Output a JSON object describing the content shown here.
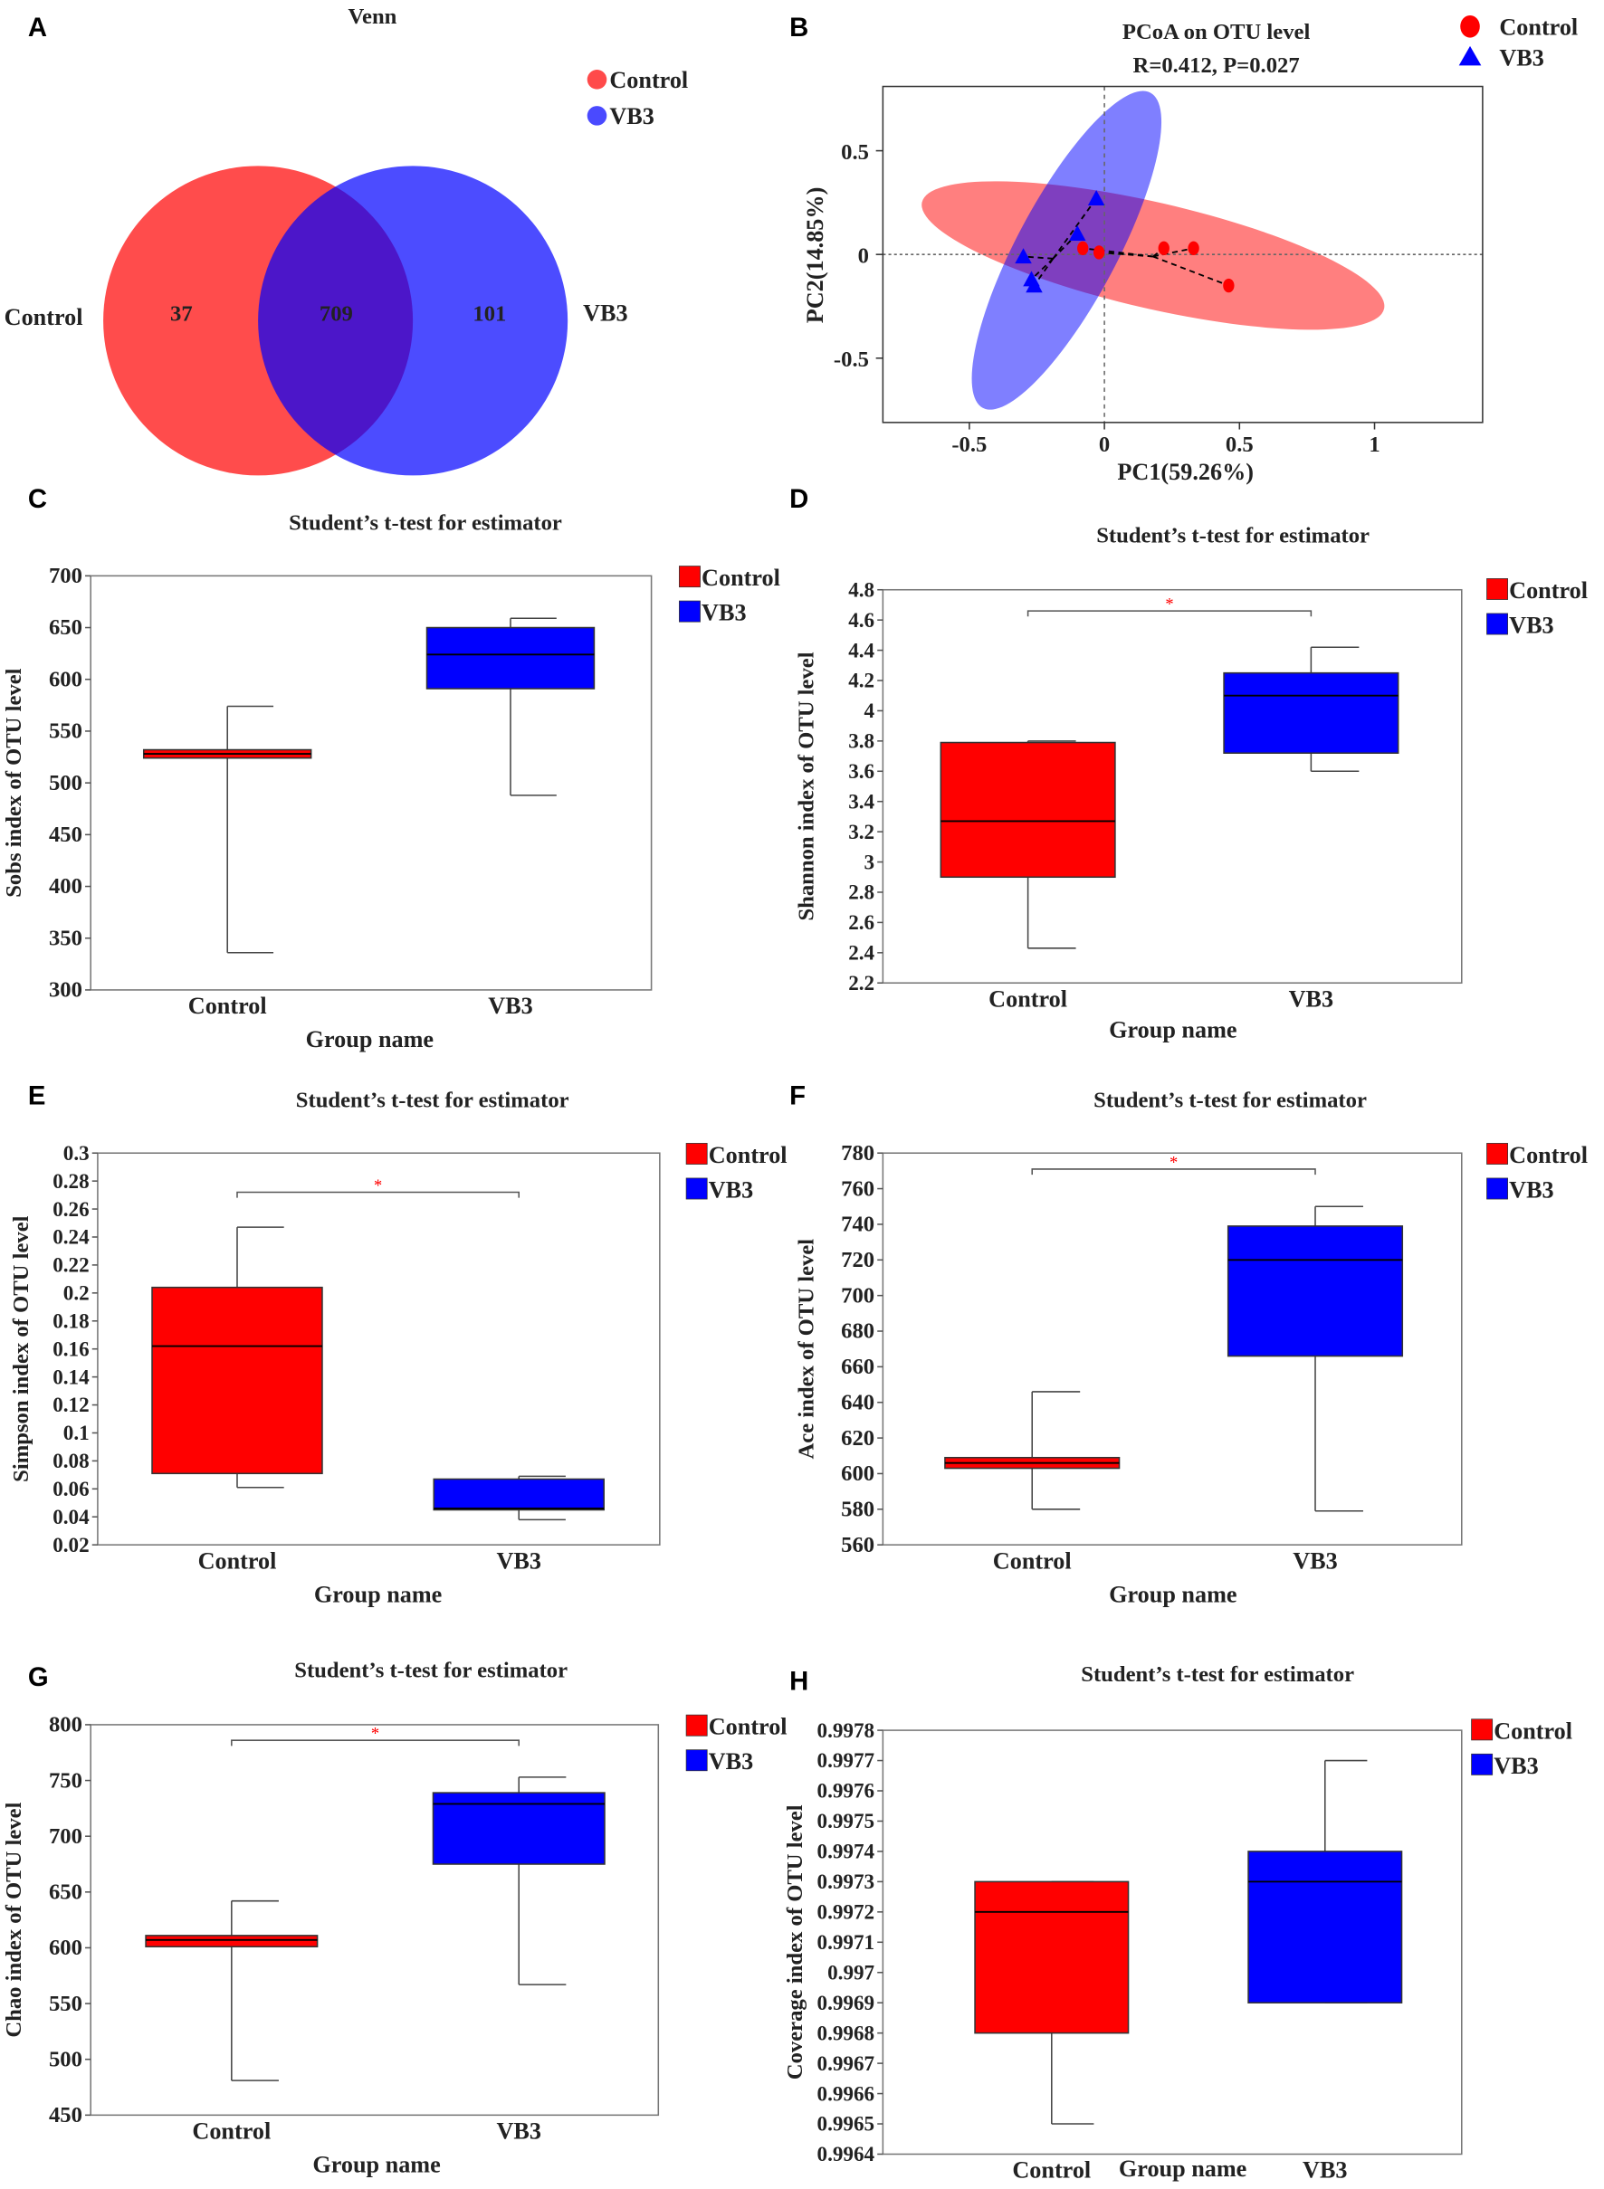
{
  "legend": {
    "control": "Control",
    "vb3": "VB3"
  },
  "colors": {
    "control": "#ff0000",
    "vb3": "#0000ff",
    "venn_control": "#ff4a4a",
    "venn_vb3": "#4a4aff",
    "sig": "#ff0000"
  },
  "venn": {
    "letter": "A",
    "title": "Venn",
    "set_labels": [
      "Control",
      "VB3"
    ],
    "only_control": "37",
    "shared": "709",
    "only_vb3": "101"
  },
  "chart_data": [
    {
      "panel": "B",
      "type": "scatter",
      "title": "PCoA on OTU level",
      "subtitle": "R=0.412, P=0.027",
      "xlabel": "PC1(59.26%)",
      "ylabel": "PC2(14.85%)",
      "xlim": [
        -0.82,
        1.4
      ],
      "ylim": [
        -0.81,
        0.81
      ],
      "xticks": [
        "-0.5",
        "0",
        "0.5",
        "1"
      ],
      "xtick_values": [
        -0.5,
        0,
        0.5,
        1
      ],
      "yticks": [
        "0.5",
        "0",
        "-0.5"
      ],
      "ytick_values": [
        0.5,
        0,
        -0.5
      ],
      "legend_position": "top-right",
      "series": [
        {
          "name": "Control",
          "marker": "circle",
          "centroid": [
            0.18,
            -0.01
          ],
          "points": [
            [
              -0.08,
              0.03
            ],
            [
              -0.02,
              0.01
            ],
            [
              0.22,
              0.03
            ],
            [
              0.33,
              0.03
            ],
            [
              0.46,
              -0.15
            ]
          ]
        },
        {
          "name": "VB3",
          "marker": "triangle",
          "centroid": [
            -0.19,
            -0.02
          ],
          "points": [
            [
              -0.3,
              -0.01
            ],
            [
              -0.27,
              -0.12
            ],
            [
              -0.26,
              -0.15
            ],
            [
              -0.1,
              0.1
            ],
            [
              -0.03,
              0.27
            ]
          ]
        }
      ]
    },
    {
      "panel": "C",
      "type": "box",
      "title": "Student’s t-test for estimator",
      "ylabel": "Sobs index of OTU level",
      "xlabel": "Group name",
      "categories": [
        "Control",
        "VB3"
      ],
      "ylim": [
        300,
        700
      ],
      "yticks": [
        "300",
        "350",
        "400",
        "450",
        "500",
        "550",
        "600",
        "650",
        "700"
      ],
      "boxes": [
        {
          "min": 336,
          "q1": 524,
          "median": 528,
          "q3": 532,
          "max": 574
        },
        {
          "min": 488,
          "q1": 591,
          "median": 624,
          "q3": 650,
          "max": 659
        }
      ],
      "significance": null
    },
    {
      "panel": "D",
      "type": "box",
      "title": "Student’s t-test for estimator",
      "ylabel": "Shannon index of OTU level",
      "xlabel": "Group name",
      "categories": [
        "Control",
        "VB3"
      ],
      "ylim": [
        2.2,
        4.8
      ],
      "yticks": [
        "2.2",
        "2.4",
        "2.6",
        "2.8",
        "3",
        "3.2",
        "3.4",
        "3.6",
        "3.8",
        "4",
        "4.2",
        "4.4",
        "4.6",
        "4.8"
      ],
      "boxes": [
        {
          "min": 2.43,
          "q1": 2.9,
          "median": 3.27,
          "q3": 3.79,
          "max": 3.8
        },
        {
          "min": 3.6,
          "q1": 3.72,
          "median": 4.1,
          "q3": 4.25,
          "max": 4.42
        }
      ],
      "significance": {
        "label": "*",
        "y": 4.66
      }
    },
    {
      "panel": "E",
      "type": "box",
      "title": "Student’s t-test for estimator",
      "ylabel": "Simpson index of OTU level",
      "xlabel": "Group name",
      "categories": [
        "Control",
        "VB3"
      ],
      "ylim": [
        0.02,
        0.3
      ],
      "yticks": [
        "0.02",
        "0.04",
        "0.06",
        "0.08",
        "0.1",
        "0.12",
        "0.14",
        "0.16",
        "0.18",
        "0.2",
        "0.22",
        "0.24",
        "0.26",
        "0.28",
        "0.3"
      ],
      "boxes": [
        {
          "min": 0.061,
          "q1": 0.071,
          "median": 0.162,
          "q3": 0.204,
          "max": 0.247
        },
        {
          "min": 0.038,
          "q1": 0.045,
          "median": 0.046,
          "q3": 0.067,
          "max": 0.069
        }
      ],
      "significance": {
        "label": "*",
        "y": 0.272
      }
    },
    {
      "panel": "F",
      "type": "box",
      "title": "Student’s t-test for estimator",
      "ylabel": "Ace index of OTU level",
      "xlabel": "Group name",
      "categories": [
        "Control",
        "VB3"
      ],
      "ylim": [
        560,
        780
      ],
      "yticks": [
        "560",
        "580",
        "600",
        "620",
        "640",
        "660",
        "680",
        "700",
        "720",
        "740",
        "760",
        "780"
      ],
      "boxes": [
        {
          "min": 580,
          "q1": 603,
          "median": 606,
          "q3": 609,
          "max": 646
        },
        {
          "min": 579,
          "q1": 666,
          "median": 720,
          "q3": 739,
          "max": 750
        }
      ],
      "significance": {
        "label": "*",
        "y": 771
      }
    },
    {
      "panel": "G",
      "type": "box",
      "title": "Student’s t-test for estimator",
      "ylabel": "Chao index of OTU level",
      "xlabel": "Group name",
      "categories": [
        "Control",
        "VB3"
      ],
      "ylim": [
        450,
        800
      ],
      "yticks": [
        "450",
        "500",
        "550",
        "600",
        "650",
        "700",
        "750",
        "800"
      ],
      "boxes": [
        {
          "min": 481,
          "q1": 601,
          "median": 607,
          "q3": 611,
          "max": 642
        },
        {
          "min": 567,
          "q1": 675,
          "median": 729,
          "q3": 739,
          "max": 753
        }
      ],
      "significance": {
        "label": "*",
        "y": 786
      }
    },
    {
      "panel": "H",
      "type": "box",
      "title": "Student’s t-test for estimator",
      "ylabel": "Coverage index of OTU level",
      "xlabel": "Group name",
      "categories": [
        "Control",
        "VB3"
      ],
      "ylim": [
        0.9964,
        0.9978
      ],
      "yticks": [
        "0.9964",
        "0.9965",
        "0.9966",
        "0.9967",
        "0.9968",
        "0.9969",
        "0.997",
        "0.9971",
        "0.9972",
        "0.9973",
        "0.9974",
        "0.9975",
        "0.9976",
        "0.9977",
        "0.9978"
      ],
      "boxes": [
        {
          "min": 0.9965,
          "q1": 0.9968,
          "median": 0.9972,
          "q3": 0.9973,
          "max": 0.9973
        },
        {
          "min": 0.9969,
          "q1": 0.9969,
          "median": 0.9973,
          "q3": 0.9974,
          "max": 0.9977
        }
      ],
      "significance": null
    }
  ]
}
